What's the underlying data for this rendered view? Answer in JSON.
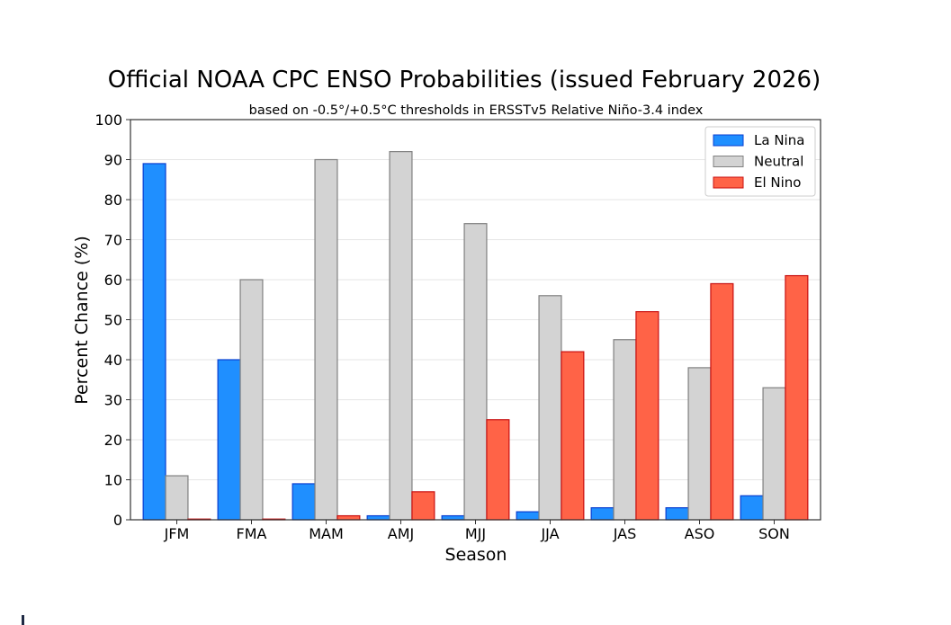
{
  "chart_data": {
    "type": "bar",
    "title": "Official NOAA CPC ENSO Probabilities (issued February 2026)",
    "subtitle": "based on -0.5°/+0.5°C thresholds in ERSSTv5 Relative Niño-3.4 index",
    "xlabel": "Season",
    "ylabel": "Percent Chance (%)",
    "ylim": [
      0,
      100
    ],
    "yticks": [
      "0",
      "10",
      "20",
      "30",
      "40",
      "50",
      "60",
      "70",
      "80",
      "90",
      "100"
    ],
    "grid": true,
    "legend_position": "top-right",
    "categories": [
      "JFM",
      "FMA",
      "MAM",
      "AMJ",
      "MJJ",
      "JJA",
      "JAS",
      "ASO",
      "SON"
    ],
    "series": [
      {
        "name": "La Nina",
        "color": "#1f8fff",
        "edge": "#0a3fd0",
        "values": [
          89,
          40,
          9,
          1,
          1,
          2,
          3,
          3,
          6
        ]
      },
      {
        "name": "Neutral",
        "color": "#d3d3d3",
        "edge": "#808080",
        "values": [
          11,
          60,
          90,
          92,
          74,
          56,
          45,
          38,
          33
        ]
      },
      {
        "name": "El Nino",
        "color": "#ff6347",
        "edge": "#c81010",
        "values": [
          0,
          0,
          1,
          7,
          25,
          42,
          52,
          59,
          61
        ]
      }
    ]
  }
}
